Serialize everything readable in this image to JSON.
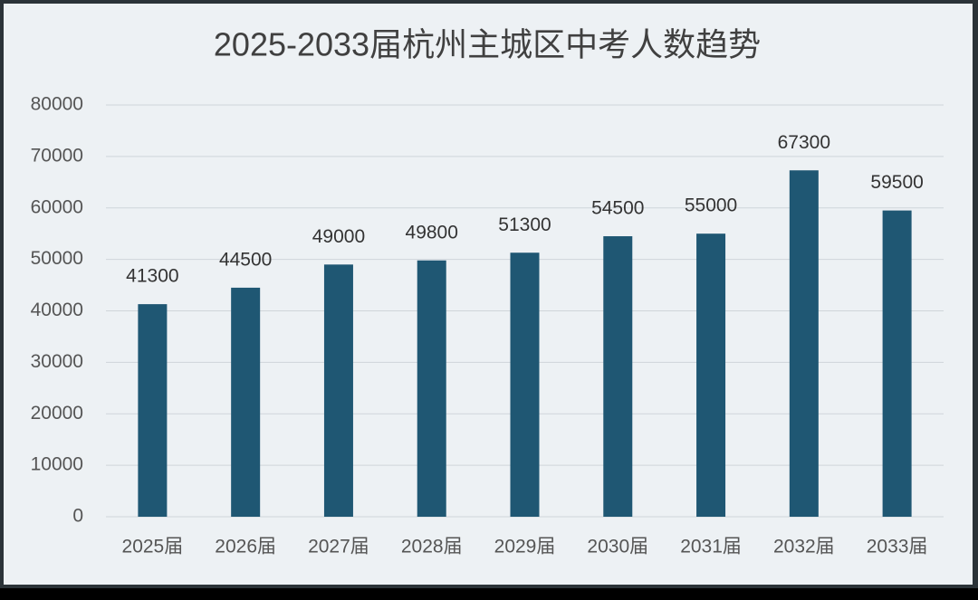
{
  "chart_data": {
    "type": "bar",
    "title": "2025-2033届杭州主城区中考人数趋势",
    "categories": [
      "2025届",
      "2026届",
      "2027届",
      "2028届",
      "2029届",
      "2030届",
      "2031届",
      "2032届",
      "2033届"
    ],
    "values": [
      41300,
      44500,
      49000,
      49800,
      51300,
      54500,
      55000,
      67300,
      59500
    ],
    "color": "#1f5773",
    "ylim": [
      0,
      80000
    ],
    "yticks": [
      0,
      10000,
      20000,
      30000,
      40000,
      50000,
      60000,
      70000,
      80000
    ],
    "grid": true
  }
}
